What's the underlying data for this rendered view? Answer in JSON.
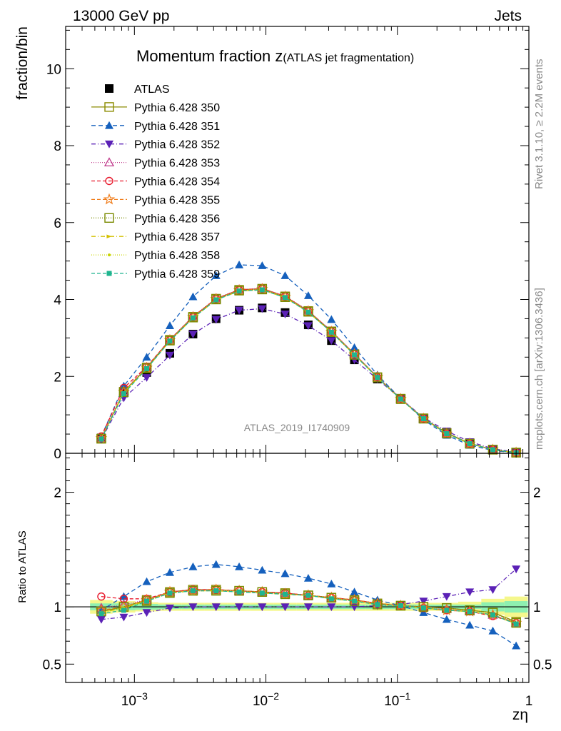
{
  "header": {
    "left": "13000 GeV pp",
    "right": "Jets"
  },
  "side_labels": {
    "rivet": "Rivet 3.1.10, ≥ 2.2M events",
    "mcplots": "mcplots.cern.ch [arXiv:1306.3436]"
  },
  "analysis_id": "ATLAS_2019_I1740909",
  "chart_data": [
    {
      "type": "line",
      "panel": "main",
      "title_main": "Momentum fraction z",
      "title_sub": "(ATLAS jet fragmentation)",
      "ylabel": "fraction/bin",
      "xlabel": "zη",
      "xscale": "log",
      "xlim": [
        0.0003,
        1.0
      ],
      "ylim": [
        0,
        11.1
      ],
      "yticks": [
        0,
        2,
        4,
        6,
        8,
        10
      ],
      "ytick_labels": [
        "0",
        "2",
        "4",
        "6",
        "8",
        "10"
      ],
      "xtick_labels": [
        "10^-3",
        "10^-2",
        "10^-1",
        "1"
      ],
      "legend_position": "top-left",
      "x": [
        0.00056,
        0.00083,
        0.00124,
        0.00186,
        0.00279,
        0.00418,
        0.00626,
        0.00937,
        0.014,
        0.021,
        0.0315,
        0.0471,
        0.0705,
        0.106,
        0.158,
        0.237,
        0.355,
        0.532,
        0.8
      ],
      "series": [
        {
          "name": "ATLAS",
          "color": "#000000",
          "marker": "square-filled",
          "dash": "none",
          "values": [
            0.4,
            1.57,
            2.1,
            2.6,
            3.1,
            3.5,
            3.72,
            3.78,
            3.66,
            3.34,
            2.93,
            2.43,
            1.93,
            1.4,
            0.9,
            0.52,
            0.26,
            0.1,
            0.02
          ]
        },
        {
          "name": "Pythia 6.428 350",
          "color": "#8b8b00",
          "marker": "square-open",
          "dash": "solid",
          "values": [
            0.38,
            1.6,
            2.23,
            2.95,
            3.55,
            4.02,
            4.25,
            4.28,
            4.08,
            3.7,
            3.17,
            2.58,
            1.98,
            1.42,
            0.91,
            0.53,
            0.26,
            0.095,
            0.018
          ]
        },
        {
          "name": "Pythia 6.428 351",
          "color": "#1560bd",
          "marker": "triangle-up-filled",
          "dash": "6,4",
          "values": [
            0.44,
            1.75,
            2.5,
            3.32,
            4.07,
            4.62,
            4.9,
            4.88,
            4.62,
            4.1,
            3.48,
            2.75,
            2.04,
            1.42,
            0.87,
            0.47,
            0.21,
            0.075,
            0.012
          ]
        },
        {
          "name": "Pythia 6.428 352",
          "color": "#5b21b6",
          "marker": "triangle-down-filled",
          "dash": "6,3,1,3",
          "values": [
            0.36,
            1.44,
            1.97,
            2.55,
            3.1,
            3.48,
            3.72,
            3.76,
            3.62,
            3.32,
            2.93,
            2.43,
            1.93,
            1.42,
            0.93,
            0.58,
            0.3,
            0.12,
            0.028
          ]
        },
        {
          "name": "Pythia 6.428 353",
          "color": "#c0398b",
          "marker": "triangle-up-open",
          "dash": "1,2",
          "values": [
            0.4,
            1.62,
            2.24,
            2.96,
            3.56,
            4.03,
            4.26,
            4.29,
            4.09,
            3.71,
            3.18,
            2.59,
            1.99,
            1.42,
            0.91,
            0.52,
            0.25,
            0.093,
            0.017
          ]
        },
        {
          "name": "Pythia 6.428 354",
          "color": "#e8192c",
          "marker": "circle-open",
          "dash": "5,3",
          "values": [
            0.44,
            1.7,
            2.25,
            2.95,
            3.55,
            4.02,
            4.25,
            4.28,
            4.08,
            3.7,
            3.17,
            2.58,
            1.98,
            1.42,
            0.9,
            0.51,
            0.25,
            0.093,
            0.017
          ]
        },
        {
          "name": "Pythia 6.428 355",
          "color": "#f07c1a",
          "marker": "star-open",
          "dash": "5,3",
          "values": [
            0.39,
            1.6,
            2.22,
            2.94,
            3.54,
            4.01,
            4.24,
            4.27,
            4.07,
            3.69,
            3.16,
            2.57,
            1.98,
            1.41,
            0.9,
            0.51,
            0.25,
            0.093,
            0.017
          ]
        },
        {
          "name": "Pythia 6.428 356",
          "color": "#7a8a00",
          "marker": "square-open",
          "dash": "1,2",
          "values": [
            0.38,
            1.59,
            2.21,
            2.93,
            3.53,
            4.0,
            4.23,
            4.26,
            4.06,
            3.68,
            3.15,
            2.56,
            1.97,
            1.41,
            0.9,
            0.52,
            0.25,
            0.095,
            0.018
          ]
        },
        {
          "name": "Pythia 6.428 357",
          "color": "#d4c000",
          "marker": "triangle-sideways",
          "dash": "6,3,1,3",
          "values": [
            0.38,
            1.58,
            2.2,
            2.92,
            3.52,
            3.99,
            4.22,
            4.25,
            4.05,
            3.67,
            3.15,
            2.56,
            1.97,
            1.41,
            0.9,
            0.51,
            0.25,
            0.093,
            0.017
          ]
        },
        {
          "name": "Pythia 6.428 358",
          "color": "#c8d400",
          "marker": "dot",
          "dash": "1,2",
          "values": [
            0.38,
            1.58,
            2.2,
            2.92,
            3.52,
            3.99,
            4.22,
            4.25,
            4.05,
            3.67,
            3.15,
            2.56,
            1.97,
            1.41,
            0.9,
            0.51,
            0.25,
            0.093,
            0.017
          ]
        },
        {
          "name": "Pythia 6.428 359",
          "color": "#1fb58f",
          "marker": "square-small-filled",
          "dash": "5,3",
          "values": [
            0.37,
            1.55,
            2.2,
            2.92,
            3.52,
            3.99,
            4.22,
            4.25,
            4.05,
            3.67,
            3.15,
            2.56,
            1.97,
            1.41,
            0.9,
            0.51,
            0.25,
            0.093,
            0.017
          ]
        }
      ]
    },
    {
      "type": "line",
      "panel": "ratio",
      "ylabel": "Ratio to ATLAS",
      "xscale": "log",
      "xlim": [
        0.0003,
        1.0
      ],
      "ylim": [
        0.34,
        2.34
      ],
      "yticks": [
        0.5,
        1,
        2
      ],
      "ytick_labels": [
        "0.5",
        "1",
        "2"
      ],
      "x": [
        0.00056,
        0.00083,
        0.00124,
        0.00186,
        0.00279,
        0.00418,
        0.00626,
        0.00937,
        0.014,
        0.021,
        0.0315,
        0.0471,
        0.0705,
        0.106,
        0.158,
        0.237,
        0.355,
        0.532,
        0.8
      ],
      "band_inner_halfwidth": [
        0.03,
        0.03,
        0.025,
        0.02,
        0.02,
        0.02,
        0.02,
        0.02,
        0.02,
        0.02,
        0.02,
        0.02,
        0.02,
        0.02,
        0.02,
        0.02,
        0.02,
        0.04,
        0.05
      ],
      "band_outer_halfwidth": [
        0.06,
        0.05,
        0.04,
        0.035,
        0.035,
        0.035,
        0.035,
        0.035,
        0.035,
        0.035,
        0.035,
        0.035,
        0.035,
        0.035,
        0.035,
        0.035,
        0.045,
        0.07,
        0.09
      ],
      "series": [
        {
          "name": "Pythia 6.428 350",
          "color": "#8b8b00",
          "marker": "square-open",
          "dash": "solid",
          "values": [
            0.96,
            1.0,
            1.06,
            1.13,
            1.15,
            1.15,
            1.14,
            1.13,
            1.12,
            1.1,
            1.08,
            1.06,
            1.03,
            1.01,
            1.0,
            0.99,
            0.97,
            0.95,
            0.87
          ]
        },
        {
          "name": "Pythia 6.428 351",
          "color": "#1560bd",
          "marker": "triangle-up-filled",
          "dash": "6,4",
          "values": [
            0.97,
            1.09,
            1.22,
            1.3,
            1.35,
            1.37,
            1.35,
            1.32,
            1.29,
            1.25,
            1.2,
            1.13,
            1.06,
            1.01,
            0.95,
            0.89,
            0.84,
            0.79,
            0.66
          ]
        },
        {
          "name": "Pythia 6.428 352",
          "color": "#5b21b6",
          "marker": "triangle-down-filled",
          "dash": "6,3,1,3",
          "values": [
            0.89,
            0.91,
            0.95,
            0.99,
            1.0,
            1.0,
            1.0,
            1.0,
            1.0,
            1.0,
            1.0,
            1.0,
            1.01,
            1.02,
            1.05,
            1.09,
            1.13,
            1.15,
            1.33
          ]
        },
        {
          "name": "Pythia 6.428 353",
          "color": "#c0398b",
          "marker": "triangle-up-open",
          "dash": "1,2",
          "values": [
            0.99,
            1.02,
            1.06,
            1.13,
            1.15,
            1.15,
            1.14,
            1.13,
            1.12,
            1.1,
            1.08,
            1.06,
            1.03,
            1.01,
            1.0,
            0.98,
            0.96,
            0.93,
            0.86
          ]
        },
        {
          "name": "Pythia 6.428 354",
          "color": "#e8192c",
          "marker": "circle-open",
          "dash": "5,3",
          "values": [
            1.09,
            1.07,
            1.07,
            1.13,
            1.15,
            1.15,
            1.14,
            1.13,
            1.12,
            1.1,
            1.08,
            1.06,
            1.03,
            1.01,
            0.99,
            0.97,
            0.96,
            0.92,
            0.86
          ]
        },
        {
          "name": "Pythia 6.428 355",
          "color": "#f07c1a",
          "marker": "star-open",
          "dash": "5,3",
          "values": [
            0.97,
            1.0,
            1.06,
            1.13,
            1.14,
            1.15,
            1.14,
            1.13,
            1.11,
            1.1,
            1.08,
            1.06,
            1.03,
            1.01,
            0.99,
            0.97,
            0.96,
            0.93,
            0.86
          ]
        },
        {
          "name": "Pythia 6.428 356",
          "color": "#7a8a00",
          "marker": "square-open",
          "dash": "1,2",
          "values": [
            0.96,
            1.0,
            1.05,
            1.12,
            1.14,
            1.14,
            1.14,
            1.13,
            1.11,
            1.1,
            1.08,
            1.05,
            1.02,
            1.01,
            1.0,
            0.99,
            0.97,
            0.95,
            0.86
          ]
        },
        {
          "name": "Pythia 6.428 357",
          "color": "#d4c000",
          "marker": "triangle-sideways",
          "dash": "6,3,1,3",
          "values": [
            0.95,
            0.99,
            1.05,
            1.12,
            1.14,
            1.14,
            1.13,
            1.12,
            1.11,
            1.1,
            1.07,
            1.05,
            1.02,
            1.01,
            0.99,
            0.97,
            0.96,
            0.93,
            0.85
          ]
        },
        {
          "name": "Pythia 6.428 358",
          "color": "#c8d400",
          "marker": "dot",
          "dash": "1,2",
          "values": [
            0.95,
            0.99,
            1.05,
            1.12,
            1.14,
            1.14,
            1.13,
            1.12,
            1.11,
            1.1,
            1.07,
            1.05,
            1.02,
            1.01,
            0.99,
            0.97,
            0.96,
            0.93,
            0.85
          ]
        },
        {
          "name": "Pythia 6.428 359",
          "color": "#1fb58f",
          "marker": "square-small-filled",
          "dash": "5,3",
          "values": [
            0.94,
            0.97,
            1.05,
            1.12,
            1.14,
            1.14,
            1.13,
            1.12,
            1.11,
            1.1,
            1.07,
            1.05,
            1.02,
            1.01,
            0.99,
            0.97,
            0.96,
            0.93,
            0.85
          ]
        }
      ]
    }
  ]
}
